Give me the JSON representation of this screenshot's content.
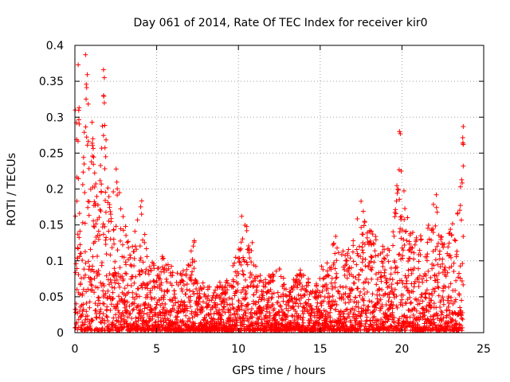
{
  "chart_data": {
    "type": "scatter",
    "title": "Day 061 of 2014, Rate Of TEC Index for receiver kir0",
    "xlabel": "GPS time / hours",
    "ylabel": "ROTI / TECUs",
    "xlim": [
      0,
      25
    ],
    "ylim": [
      0,
      0.4
    ],
    "grid": true,
    "marker": "+",
    "color": "#ff0000",
    "x_ticks": [
      0,
      5,
      10,
      15,
      20,
      25
    ],
    "x_tick_labels": [
      "0",
      "5",
      "10",
      "15",
      "20",
      "25"
    ],
    "y_ticks": [
      0,
      0.05,
      0.1,
      0.15,
      0.2,
      0.25,
      0.3,
      0.35,
      0.4
    ],
    "y_tick_labels": [
      "0",
      "0.05",
      "0.1",
      "0.15",
      "0.2",
      "0.25",
      "0.3",
      "0.35",
      "0.4"
    ],
    "series": [
      {
        "name": "ROTI",
        "envelope_upper": [
          [
            0.0,
            0.31
          ],
          [
            0.25,
            0.37
          ],
          [
            0.5,
            0.25
          ],
          [
            0.75,
            0.385
          ],
          [
            1.0,
            0.29
          ],
          [
            1.25,
            0.22
          ],
          [
            1.5,
            0.2
          ],
          [
            1.75,
            0.365
          ],
          [
            2.0,
            0.22
          ],
          [
            2.25,
            0.16
          ],
          [
            2.5,
            0.24
          ],
          [
            2.75,
            0.2
          ],
          [
            3.0,
            0.16
          ],
          [
            3.25,
            0.14
          ],
          [
            3.5,
            0.12
          ],
          [
            4.0,
            0.2
          ],
          [
            4.5,
            0.1
          ],
          [
            5.0,
            0.09
          ],
          [
            5.5,
            0.11
          ],
          [
            6.0,
            0.09
          ],
          [
            6.5,
            0.08
          ],
          [
            7.0,
            0.1
          ],
          [
            7.25,
            0.13
          ],
          [
            7.5,
            0.06
          ],
          [
            8.0,
            0.07
          ],
          [
            8.5,
            0.06
          ],
          [
            9.0,
            0.07
          ],
          [
            9.5,
            0.08
          ],
          [
            10.0,
            0.12
          ],
          [
            10.5,
            0.16
          ],
          [
            11.0,
            0.11
          ],
          [
            11.5,
            0.07
          ],
          [
            12.0,
            0.08
          ],
          [
            12.5,
            0.09
          ],
          [
            13.0,
            0.06
          ],
          [
            13.5,
            0.08
          ],
          [
            14.0,
            0.09
          ],
          [
            14.5,
            0.06
          ],
          [
            15.0,
            0.09
          ],
          [
            15.5,
            0.1
          ],
          [
            16.0,
            0.14
          ],
          [
            16.5,
            0.12
          ],
          [
            17.0,
            0.13
          ],
          [
            17.5,
            0.18
          ],
          [
            18.0,
            0.15
          ],
          [
            18.5,
            0.13
          ],
          [
            19.0,
            0.12
          ],
          [
            19.5,
            0.14
          ],
          [
            19.9,
            0.28
          ],
          [
            20.0,
            0.22
          ],
          [
            20.5,
            0.14
          ],
          [
            21.0,
            0.13
          ],
          [
            21.5,
            0.14
          ],
          [
            22.0,
            0.19
          ],
          [
            22.5,
            0.12
          ],
          [
            23.0,
            0.15
          ],
          [
            23.5,
            0.17
          ],
          [
            23.75,
            0.29
          ]
        ],
        "outliers": [
          [
            0.02,
            0.31
          ],
          [
            0.2,
            0.373
          ],
          [
            0.65,
            0.387
          ],
          [
            1.75,
            0.366
          ],
          [
            1.8,
            0.355
          ],
          [
            1.75,
            0.33
          ],
          [
            1.8,
            0.32
          ],
          [
            1.05,
            0.293
          ],
          [
            1.1,
            0.27
          ],
          [
            19.85,
            0.28
          ],
          [
            19.9,
            0.277
          ],
          [
            19.95,
            0.225
          ],
          [
            23.75,
            0.287
          ],
          [
            23.75,
            0.262
          ],
          [
            23.75,
            0.232
          ],
          [
            10.2,
            0.162
          ],
          [
            7.3,
            0.128
          ],
          [
            7.3,
            0.126
          ],
          [
            22.1,
            0.192
          ],
          [
            17.5,
            0.183
          ]
        ]
      }
    ]
  }
}
